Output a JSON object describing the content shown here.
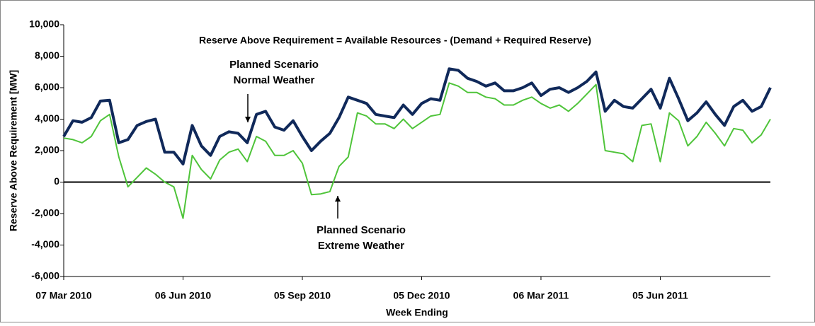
{
  "chart_data": {
    "type": "line",
    "title": "Reserve Above Requirement = Available Resources - (Demand + Required Reserve)",
    "y_label": "Reserve Above Requirement [MW]",
    "x_label": "Week Ending",
    "categories": [
      "07 Mar 2010",
      null,
      null,
      null,
      null,
      null,
      null,
      null,
      null,
      null,
      null,
      null,
      null,
      "06 Jun 2010",
      null,
      null,
      null,
      null,
      null,
      null,
      null,
      null,
      null,
      null,
      null,
      null,
      "05 Sep 2010",
      null,
      null,
      null,
      null,
      null,
      null,
      null,
      null,
      null,
      null,
      null,
      null,
      "05 Dec 2010",
      null,
      null,
      null,
      null,
      null,
      null,
      null,
      null,
      null,
      null,
      null,
      null,
      "06 Mar 2011",
      null,
      null,
      null,
      null,
      null,
      null,
      null,
      null,
      null,
      null,
      null,
      null,
      "05 Jun 2011",
      null,
      null,
      null,
      null,
      null,
      null,
      null,
      null,
      null,
      null,
      null,
      null
    ],
    "series": [
      {
        "name": "Planned Scenario Normal Weather",
        "color": "#10295a",
        "values": [
          2900,
          3900,
          3800,
          4100,
          5150,
          5200,
          2500,
          2700,
          3600,
          3850,
          4000,
          1900,
          1900,
          1150,
          3600,
          2300,
          1700,
          2900,
          3200,
          3100,
          2500,
          4300,
          4500,
          3500,
          3300,
          3900,
          2900,
          2000,
          2600,
          3100,
          4100,
          5400,
          5200,
          5000,
          4300,
          4200,
          4100,
          4900,
          4300,
          5000,
          5300,
          5200,
          7200,
          7100,
          6600,
          6400,
          6100,
          6300,
          5800,
          5800,
          6000,
          6300,
          5500,
          5900,
          6000,
          5700,
          6000,
          6400,
          7000,
          4500,
          5200,
          4800,
          4700,
          5300,
          5900,
          4700,
          6600,
          5300,
          3900,
          4400,
          5100,
          4300,
          3600,
          4800,
          5200,
          4500,
          4800,
          6000
        ]
      },
      {
        "name": "Planned Scenario Extreme Weather",
        "color": "#4fc43a",
        "values": [
          2800,
          2700,
          2500,
          2900,
          3900,
          4300,
          1600,
          -300,
          300,
          900,
          500,
          0,
          -300,
          -2300,
          1700,
          800,
          200,
          1400,
          1900,
          2100,
          1300,
          2900,
          2600,
          1700,
          1700,
          2000,
          1200,
          -800,
          -750,
          -600,
          1000,
          1600,
          4400,
          4200,
          3700,
          3700,
          3400,
          4000,
          3400,
          3800,
          4200,
          4300,
          6300,
          6100,
          5700,
          5700,
          5400,
          5300,
          4900,
          4900,
          5200,
          5400,
          5000,
          4700,
          4900,
          4500,
          5000,
          5600,
          6200,
          2000,
          1900,
          1800,
          1300,
          3600,
          3700,
          1300,
          4400,
          3900,
          2300,
          2900,
          3800,
          3100,
          2300,
          3400,
          3300,
          2500,
          3000,
          4000
        ]
      }
    ],
    "annotations": [
      {
        "lines": [
          "Planned Scenario",
          "Normal Weather"
        ],
        "series": 0
      },
      {
        "lines": [
          "Planned Scenario",
          "Extreme Weather"
        ],
        "series": 1
      }
    ],
    "ylim": [
      -6000,
      10000
    ],
    "yticks": [
      {
        "value": -6000,
        "label": "-6,000"
      },
      {
        "value": -4000,
        "label": "-4,000"
      },
      {
        "value": -2000,
        "label": "-2,000"
      },
      0,
      {
        "value": 2000,
        "label": "2,000"
      },
      {
        "value": 4000,
        "label": "4,000"
      },
      {
        "value": 6000,
        "label": "6,000"
      },
      {
        "value": 8000,
        "label": "8,000"
      },
      {
        "value": 10000,
        "label": "10,000"
      }
    ]
  }
}
